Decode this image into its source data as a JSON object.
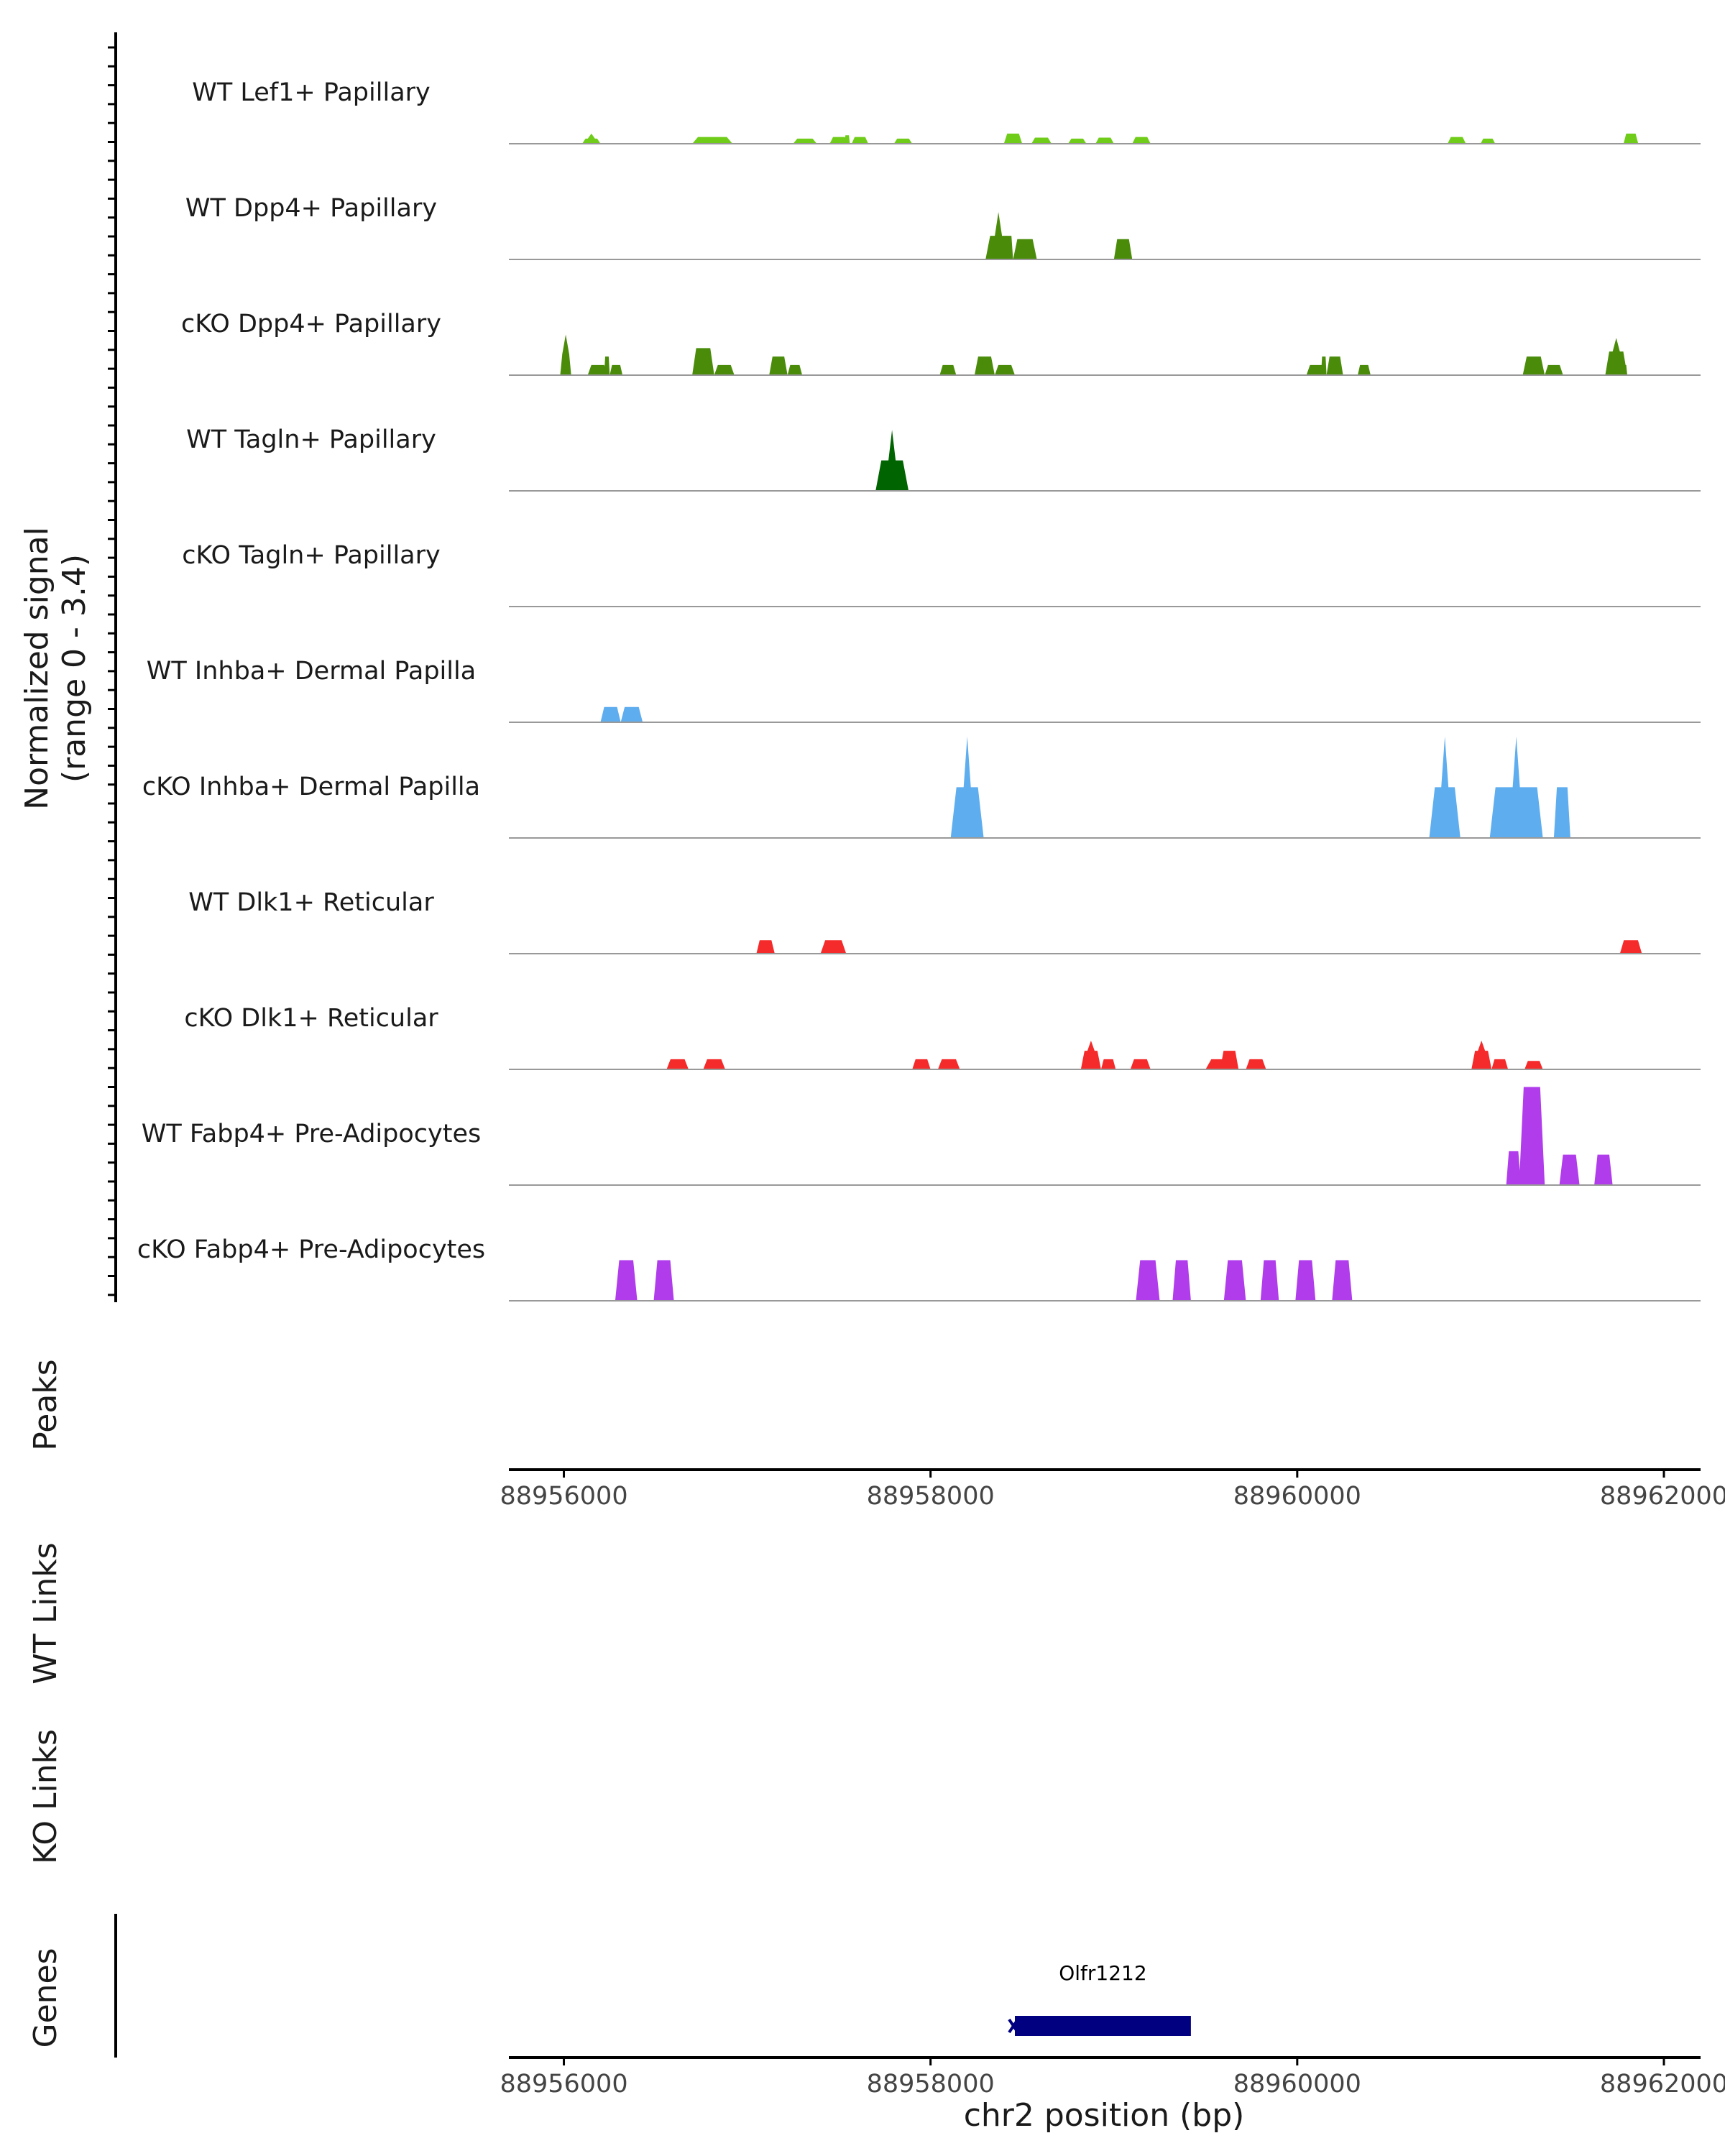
{
  "chart_data": {
    "type": "area",
    "colors": {
      "lightgreen": "#6FCC19",
      "green": "#4A8C0A",
      "darkgreen": "#006400",
      "blue": "#5EADEF",
      "red": "#F52A2A",
      "purple": "#B03CEB",
      "gene": "#000080",
      "baseline": "#999999",
      "axis": "#000000",
      "text": "#1a1a1a"
    },
    "ylabel_line1": "Normalized signal",
    "ylabel_line2": "(range 0 - 3.4)",
    "yrange": [
      0,
      3.4
    ],
    "xrange": [
      88955700,
      88962200
    ],
    "xticks": [
      {
        "value": 88956000,
        "label": "88956000"
      },
      {
        "value": 88958000,
        "label": "88958000"
      },
      {
        "value": 88960000,
        "label": "88960000"
      },
      {
        "value": 88962000,
        "label": "88962000"
      }
    ],
    "xlabel": "chr2 position (bp)",
    "tracks": [
      {
        "name": "WT Lef1+ Papillary",
        "color": "lightgreen",
        "blocks": [
          [
            88956100,
            88956200,
            0.15,
            0.3
          ],
          [
            88956700,
            88956920,
            0.2
          ],
          [
            88957250,
            88957380,
            0.15
          ],
          [
            88957450,
            88957550,
            0.2
          ],
          [
            88957530,
            88957560,
            0.25
          ],
          [
            88957570,
            88957660,
            0.2
          ],
          [
            88957800,
            88957900,
            0.15
          ],
          [
            88958400,
            88958500,
            0.3
          ],
          [
            88958550,
            88958660,
            0.18
          ],
          [
            88958750,
            88958850,
            0.15
          ],
          [
            88958900,
            88959000,
            0.18
          ],
          [
            88959100,
            88959200,
            0.2
          ],
          [
            88960820,
            88960920,
            0.2
          ],
          [
            88961000,
            88961080,
            0.15
          ],
          [
            88961780,
            88961860,
            0.3
          ]
        ]
      },
      {
        "name": "WT Dpp4+ Papillary",
        "color": "green",
        "blocks": [
          [
            88958300,
            88958440,
            0.7,
            1.4
          ],
          [
            88958400,
            88958450,
            0.7
          ],
          [
            88958450,
            88958580,
            0.6
          ],
          [
            88959000,
            88959100,
            0.6
          ]
        ]
      },
      {
        "name": "cKO Dpp4+ Papillary",
        "color": "green",
        "blocks": [
          [
            88955980,
            88956040,
            0.6,
            1.2
          ],
          [
            88956130,
            88956240,
            0.3
          ],
          [
            88956220,
            88956250,
            0.55
          ],
          [
            88956250,
            88956320,
            0.3
          ],
          [
            88956700,
            88956820,
            0.8
          ],
          [
            88956820,
            88956930,
            0.3
          ],
          [
            88957120,
            88957220,
            0.55
          ],
          [
            88957220,
            88957300,
            0.3
          ],
          [
            88958050,
            88958140,
            0.3
          ],
          [
            88958240,
            88958350,
            0.55
          ],
          [
            88958350,
            88958460,
            0.3
          ],
          [
            88960050,
            88960160,
            0.3
          ],
          [
            88960130,
            88960160,
            0.55
          ],
          [
            88960160,
            88960250,
            0.55
          ],
          [
            88960330,
            88960400,
            0.3
          ],
          [
            88961230,
            88961350,
            0.55
          ],
          [
            88961350,
            88961450,
            0.3
          ],
          [
            88961680,
            88961800,
            0.7,
            1.1
          ],
          [
            88961770,
            88961800,
            0.3
          ]
        ]
      },
      {
        "name": "WT Tagln+ Papillary",
        "color": "darkgreen",
        "blocks": [
          [
            88957700,
            88957880,
            0.9,
            1.8
          ]
        ]
      },
      {
        "name": "cKO Tagln+ Papillary",
        "color": "green",
        "blocks": []
      },
      {
        "name": "WT Inhba+ Dermal Papilla",
        "color": "blue",
        "blocks": [
          [
            88956200,
            88956310,
            0.45
          ],
          [
            88956310,
            88956430,
            0.45
          ]
        ]
      },
      {
        "name": "cKO Inhba+ Dermal Papilla",
        "color": "blue",
        "blocks": [
          [
            88958110,
            88958290,
            1.5,
            3.0
          ],
          [
            88960720,
            88960890,
            1.5,
            3.0
          ],
          [
            88961050,
            88961340,
            1.5,
            3.0
          ],
          [
            88961400,
            88961490,
            1.5
          ]
        ]
      },
      {
        "name": "WT Dlk1+ Reticular",
        "color": "red",
        "blocks": [
          [
            88957050,
            88957150,
            0.4
          ],
          [
            88957400,
            88957540,
            0.4
          ],
          [
            88961760,
            88961880,
            0.4
          ]
        ]
      },
      {
        "name": "cKO Dlk1+ Reticular",
        "color": "red",
        "blocks": [
          [
            88956560,
            88956680,
            0.3
          ],
          [
            88956760,
            88956880,
            0.3
          ],
          [
            88957900,
            88958000,
            0.3
          ],
          [
            88958040,
            88958160,
            0.3
          ],
          [
            88958820,
            88958930,
            0.55,
            0.85
          ],
          [
            88958930,
            88959010,
            0.3
          ],
          [
            88959090,
            88959200,
            0.3
          ],
          [
            88959500,
            88959680,
            0.3
          ],
          [
            88959580,
            88959680,
            0.55
          ],
          [
            88959720,
            88959830,
            0.3
          ],
          [
            88960950,
            88961060,
            0.55,
            0.85
          ],
          [
            88961060,
            88961150,
            0.3
          ],
          [
            88961240,
            88961340,
            0.25
          ]
        ]
      },
      {
        "name": "WT Fabp4+ Pre-Adipocytes",
        "color": "purple",
        "blocks": [
          [
            88961140,
            88961220,
            1.0
          ],
          [
            88961210,
            88961350,
            2.9
          ],
          [
            88961430,
            88961540,
            0.9
          ],
          [
            88961620,
            88961720,
            0.9
          ]
        ]
      },
      {
        "name": "cKO Fabp4+ Pre-Adipocytes",
        "color": "purple",
        "blocks": [
          [
            88956280,
            88956400,
            1.2
          ],
          [
            88956490,
            88956600,
            1.2
          ],
          [
            88959120,
            88959250,
            1.2
          ],
          [
            88959320,
            88959420,
            1.2
          ],
          [
            88959600,
            88959720,
            1.2
          ],
          [
            88959800,
            88959900,
            1.2
          ],
          [
            88959990,
            88960100,
            1.2
          ],
          [
            88960190,
            88960300,
            1.2
          ]
        ]
      }
    ],
    "panels": {
      "peaks_label": "Peaks",
      "wt_links_label": "WT Links",
      "ko_links_label": "KO Links",
      "genes_label": "Genes"
    },
    "gene": {
      "name": "Olfr1212",
      "start": 88958460,
      "end": 88959420
    }
  }
}
